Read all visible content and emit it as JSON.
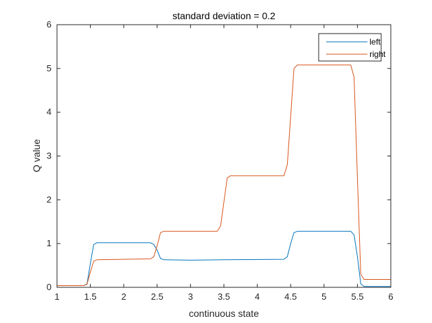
{
  "chart_data": {
    "type": "line",
    "title": "standard deviation = 0.2",
    "xlabel": "continuous state",
    "ylabel": "Q value",
    "xlim": [
      1,
      6
    ],
    "ylim": [
      0,
      6
    ],
    "xticks": [
      1,
      1.5,
      2,
      2.5,
      3,
      3.5,
      4,
      4.5,
      5,
      5.5,
      6
    ],
    "xtick_labels": [
      "1",
      "1.5",
      "2",
      "2.5",
      "3",
      "3.5",
      "4",
      "4.5",
      "5",
      "5.5",
      "6"
    ],
    "yticks": [
      0,
      1,
      2,
      3,
      4,
      5,
      6
    ],
    "ytick_labels": [
      "0",
      "1",
      "2",
      "3",
      "4",
      "5",
      "6"
    ],
    "grid": false,
    "legend_position": "top-right",
    "series": [
      {
        "name": "left",
        "color": "#0072BD",
        "x": [
          1.0,
          1.4,
          1.45,
          1.5,
          1.55,
          1.6,
          2.4,
          2.45,
          2.5,
          2.55,
          2.6,
          3.0,
          3.5,
          4.4,
          4.45,
          4.5,
          4.55,
          4.6,
          5.4,
          5.45,
          5.5,
          5.55,
          5.6,
          6.0
        ],
        "y": [
          0.04,
          0.04,
          0.08,
          0.55,
          0.98,
          1.02,
          1.02,
          0.98,
          0.85,
          0.66,
          0.63,
          0.62,
          0.63,
          0.64,
          0.7,
          1.0,
          1.25,
          1.28,
          1.28,
          1.2,
          0.7,
          0.08,
          0.02,
          0.02
        ]
      },
      {
        "name": "right",
        "color": "#D95319",
        "x": [
          1.0,
          1.4,
          1.45,
          1.5,
          1.55,
          1.6,
          2.4,
          2.45,
          2.5,
          2.55,
          2.6,
          3.4,
          3.45,
          3.5,
          3.55,
          3.6,
          4.4,
          4.45,
          4.5,
          4.55,
          4.6,
          5.4,
          5.45,
          5.5,
          5.55,
          5.6,
          6.0
        ],
        "y": [
          0.04,
          0.04,
          0.07,
          0.35,
          0.6,
          0.63,
          0.65,
          0.7,
          0.95,
          1.25,
          1.28,
          1.28,
          1.4,
          1.95,
          2.5,
          2.55,
          2.55,
          2.8,
          3.9,
          5.0,
          5.08,
          5.08,
          4.8,
          2.5,
          0.3,
          0.18,
          0.18
        ]
      }
    ]
  }
}
